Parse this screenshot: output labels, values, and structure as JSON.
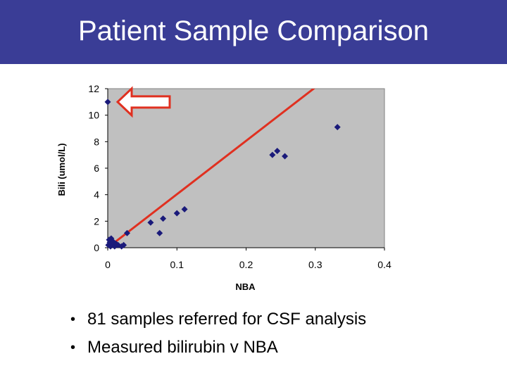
{
  "slide": {
    "title": "Patient Sample Comparison",
    "bullets": [
      "81 samples referred for CSF analysis",
      "Measured bilirubin v NBA"
    ]
  },
  "colors": {
    "title_bar": "#3a3d96",
    "plot_bg": "#c0c0c0",
    "points": "#1a1a7a",
    "trend_line": "#e03020",
    "arrow": "#e03020"
  },
  "chart_data": {
    "type": "scatter",
    "title": "",
    "xlabel": "NBA",
    "ylabel": "Bili (umol/L)",
    "xlim": [
      0,
      0.4
    ],
    "ylim": [
      0,
      12
    ],
    "xticks": [
      0,
      0.1,
      0.2,
      0.3,
      0.4
    ],
    "xtick_labels": [
      "0",
      "0.1",
      "0.2",
      "0.3",
      "0.4"
    ],
    "yticks": [
      0,
      2,
      4,
      6,
      8,
      10,
      12
    ],
    "ytick_labels": [
      "0",
      "2",
      "4",
      "6",
      "8",
      "10",
      "12"
    ],
    "grid": false,
    "series": [
      {
        "points": [
          {
            "x": 0.0,
            "y": 11.0
          },
          {
            "x": 0.001,
            "y": 0.2
          },
          {
            "x": 0.002,
            "y": 0.6
          },
          {
            "x": 0.003,
            "y": 0.4
          },
          {
            "x": 0.004,
            "y": 0.1
          },
          {
            "x": 0.005,
            "y": 0.7
          },
          {
            "x": 0.006,
            "y": 0.3
          },
          {
            "x": 0.007,
            "y": 0.5
          },
          {
            "x": 0.008,
            "y": 0.2
          },
          {
            "x": 0.01,
            "y": 0.1
          },
          {
            "x": 0.012,
            "y": 0.3
          },
          {
            "x": 0.015,
            "y": 0.2
          },
          {
            "x": 0.02,
            "y": 0.1
          },
          {
            "x": 0.023,
            "y": 0.2
          },
          {
            "x": 0.028,
            "y": 1.1
          },
          {
            "x": 0.062,
            "y": 1.9
          },
          {
            "x": 0.075,
            "y": 1.1
          },
          {
            "x": 0.08,
            "y": 2.2
          },
          {
            "x": 0.1,
            "y": 2.6
          },
          {
            "x": 0.111,
            "y": 2.9
          },
          {
            "x": 0.238,
            "y": 7.0
          },
          {
            "x": 0.245,
            "y": 7.3
          },
          {
            "x": 0.256,
            "y": 6.9
          },
          {
            "x": 0.332,
            "y": 9.1
          }
        ]
      }
    ],
    "trendline": {
      "x": [
        0.0,
        0.31
      ],
      "y": [
        0.0,
        12.5
      ]
    },
    "annotation": {
      "type": "arrow",
      "points_to": {
        "x": 0.0,
        "y": 11.0
      }
    }
  }
}
